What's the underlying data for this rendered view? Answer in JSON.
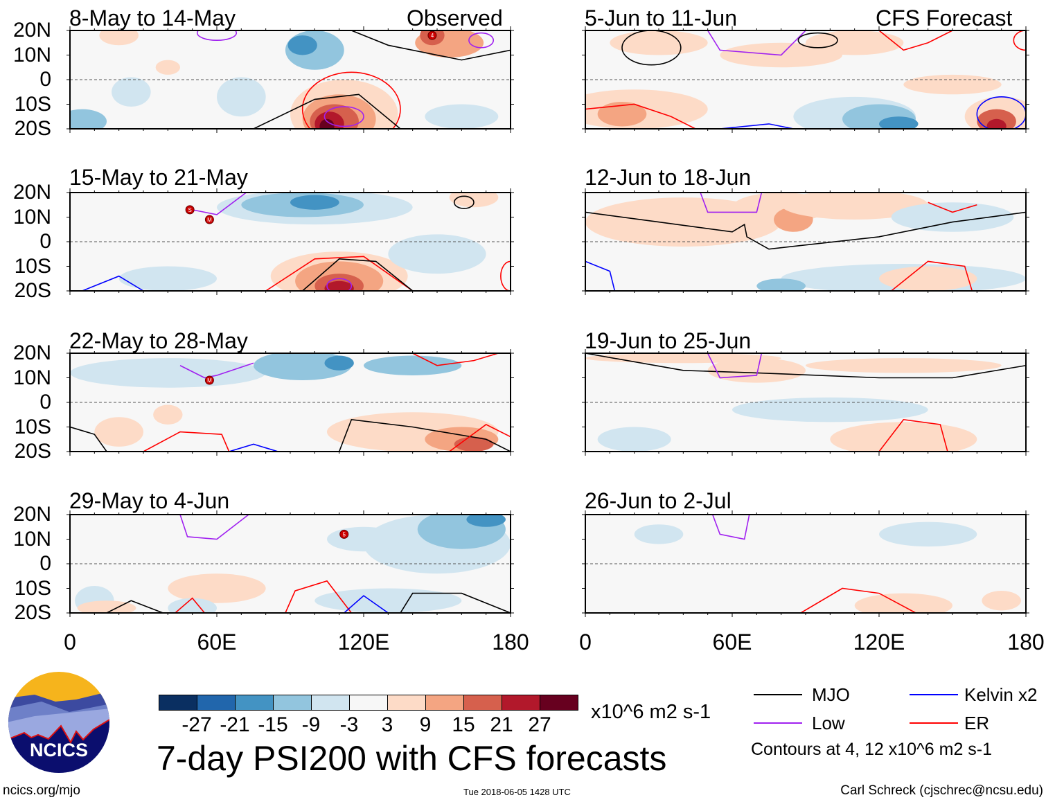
{
  "headers": {
    "left": "Observed",
    "right": "CFS Forecast"
  },
  "left_panels": [
    "8-May to 14-May",
    "15-May to 21-May",
    "22-May to 28-May",
    "29-May to 4-Jun"
  ],
  "right_panels": [
    "5-Jun to 11-Jun",
    "12-Jun to 18-Jun",
    "19-Jun to 25-Jun",
    "26-Jun to 2-Jul"
  ],
  "y_ticks": [
    "20N",
    "10N",
    "0",
    "10S",
    "20S"
  ],
  "x_ticks": [
    "0",
    "60E",
    "120E",
    "180"
  ],
  "colorbar": {
    "colors": [
      "#0a2f61",
      "#2166ac",
      "#4393c3",
      "#92c5de",
      "#d1e5f0",
      "#f7f7f7",
      "#fddbc7",
      "#f4a582",
      "#d6604d",
      "#b2182b",
      "#67001f"
    ],
    "labels": [
      "-27",
      "-21",
      "-15",
      "-9",
      "-3",
      "3",
      "9",
      "15",
      "21",
      "27"
    ],
    "units": "x10^6 m2 s-1"
  },
  "title": "7-day PSI200 with CFS forecasts",
  "legend": {
    "items": [
      {
        "label": "MJO",
        "color": "#000000"
      },
      {
        "label": "Low",
        "color": "#a020f0"
      },
      {
        "label": "Kelvin x2",
        "color": "#0000ff"
      },
      {
        "label": "ER",
        "color": "#ff0000"
      }
    ],
    "note": "Contours at 4, 12 x10^6 m2 s-1"
  },
  "logo": {
    "text": "NCICS"
  },
  "footer": {
    "url": "ncics.org/mjo",
    "timestamp": "Tue 2018-06-05 1428 UTC",
    "credit": "Carl Schreck (cjschrec@ncsu.edu)"
  },
  "storms": [
    {
      "panel": 0,
      "label": "4",
      "lon": 148,
      "lat": 18
    },
    {
      "panel": 1,
      "label": "S",
      "lon": 49,
      "lat": 13
    },
    {
      "panel": 1,
      "label": "M",
      "lon": 57,
      "lat": 9
    },
    {
      "panel": 2,
      "label": "M",
      "lon": 57,
      "lat": 9
    },
    {
      "panel": 3,
      "label": "5",
      "lon": 112,
      "lat": 12
    }
  ]
}
